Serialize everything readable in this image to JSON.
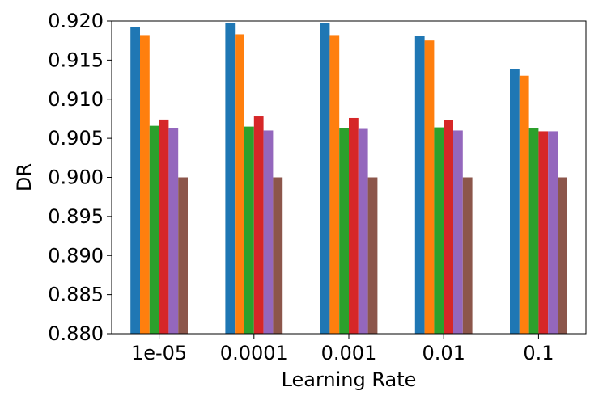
{
  "chart_data": {
    "type": "bar",
    "title": "",
    "xlabel": "Learning Rate",
    "ylabel": "DR",
    "categories": [
      "1e-05",
      "0.0001",
      "0.001",
      "0.01",
      "0.1"
    ],
    "ylim": [
      0.88,
      0.92
    ],
    "yticks": [
      "0.880",
      "0.885",
      "0.890",
      "0.895",
      "0.900",
      "0.905",
      "0.910",
      "0.915",
      "0.920"
    ],
    "ytick_values": [
      0.88,
      0.885,
      0.89,
      0.895,
      0.9,
      0.905,
      0.91,
      0.915,
      0.92
    ],
    "grid": false,
    "legend": "none",
    "series": [
      {
        "color": "#1f77b4",
        "values": [
          0.9192,
          0.9197,
          0.9197,
          0.9181,
          0.9138
        ]
      },
      {
        "color": "#ff7f0e",
        "values": [
          0.9182,
          0.9183,
          0.9182,
          0.9175,
          0.913
        ]
      },
      {
        "color": "#2ca02c",
        "values": [
          0.9066,
          0.9065,
          0.9063,
          0.9064,
          0.9063
        ]
      },
      {
        "color": "#d62728",
        "values": [
          0.9074,
          0.9078,
          0.9076,
          0.9073,
          0.9059
        ]
      },
      {
        "color": "#9467bd",
        "values": [
          0.9063,
          0.906,
          0.9062,
          0.906,
          0.9059
        ]
      },
      {
        "color": "#8c564b",
        "values": [
          0.9,
          0.9,
          0.9,
          0.9,
          0.9
        ]
      }
    ]
  }
}
